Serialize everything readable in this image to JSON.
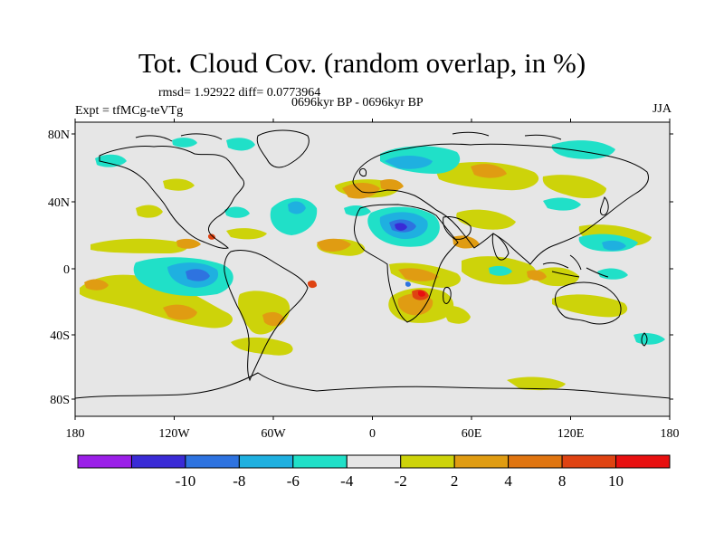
{
  "title": "Tot. Cloud Cov. (random overlap, in %)",
  "stats_text": "rmsd= 1.92922 diff= 0.0773964",
  "period_text": "0696kyr BP - 0696kyr BP",
  "expt_text": "Expt = tfMCg-teVTg",
  "season": "JJA",
  "lat_labels": [
    "80N",
    "40N",
    "0",
    "40S",
    "80S"
  ],
  "lon_labels": [
    "180",
    "120W",
    "60W",
    "0",
    "60E",
    "120E",
    "180"
  ],
  "colorbar": {
    "colors": [
      "#9b1fe8",
      "#3a2bd6",
      "#2e73e0",
      "#1fb0e0",
      "#20e0c8",
      "#e6e6e6",
      "#cdd30a",
      "#e09c12",
      "#e07510",
      "#df4312",
      "#e81010"
    ],
    "labels": [
      "-10",
      "-8",
      "-6",
      "-4",
      "-2",
      "2",
      "4",
      "8",
      "10"
    ]
  },
  "ocean_color": "#e6e6e6"
}
